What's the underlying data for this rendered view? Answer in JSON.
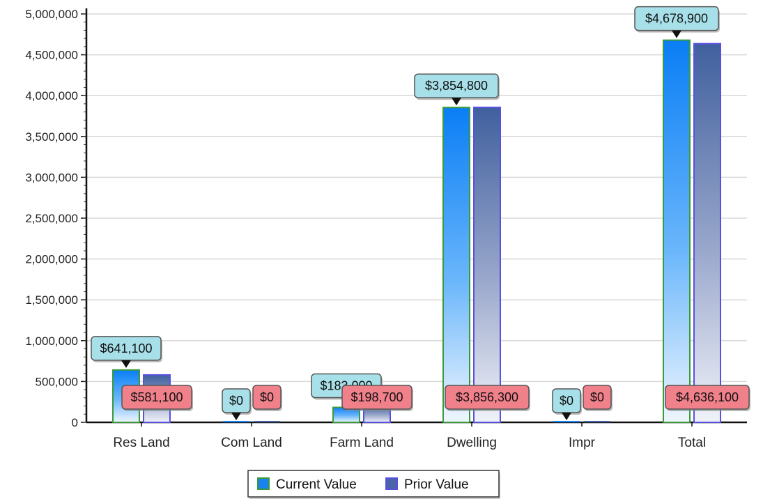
{
  "chart_data": {
    "type": "bar",
    "categories": [
      "Res Land",
      "Com Land",
      "Farm Land",
      "Dwelling",
      "Impr",
      "Total"
    ],
    "series": [
      {
        "name": "Current Value",
        "values": [
          641100,
          0,
          183000,
          3854800,
          0,
          4678900
        ],
        "labels": [
          "$641,100",
          "$0",
          "$183,000",
          "$3,854,800",
          "$0",
          "$4,678,900"
        ],
        "color": "#1a82f0",
        "border": "#3a9a3a",
        "callout_color": "#a8e0ea"
      },
      {
        "name": "Prior Value",
        "values": [
          581100,
          0,
          198700,
          3856300,
          0,
          4636100
        ],
        "labels": [
          "$581,100",
          "$0",
          "$198,700",
          "$3,856,300",
          "$0",
          "$4,636,100"
        ],
        "color": "#4a64a8",
        "border": "#5a50e0",
        "callout_color": "#f0808a"
      }
    ],
    "ylim": [
      0,
      5000000
    ],
    "yticks": [
      0,
      500000,
      1000000,
      1500000,
      2000000,
      2500000,
      3000000,
      3500000,
      4000000,
      4500000,
      5000000
    ],
    "ytick_labels": [
      "0",
      "500,000",
      "1,000,000",
      "1,500,000",
      "2,000,000",
      "2,500,000",
      "3,000,000",
      "3,500,000",
      "4,000,000",
      "4,500,000",
      "5,000,000"
    ],
    "grid": true,
    "legend": "bottom-center"
  }
}
